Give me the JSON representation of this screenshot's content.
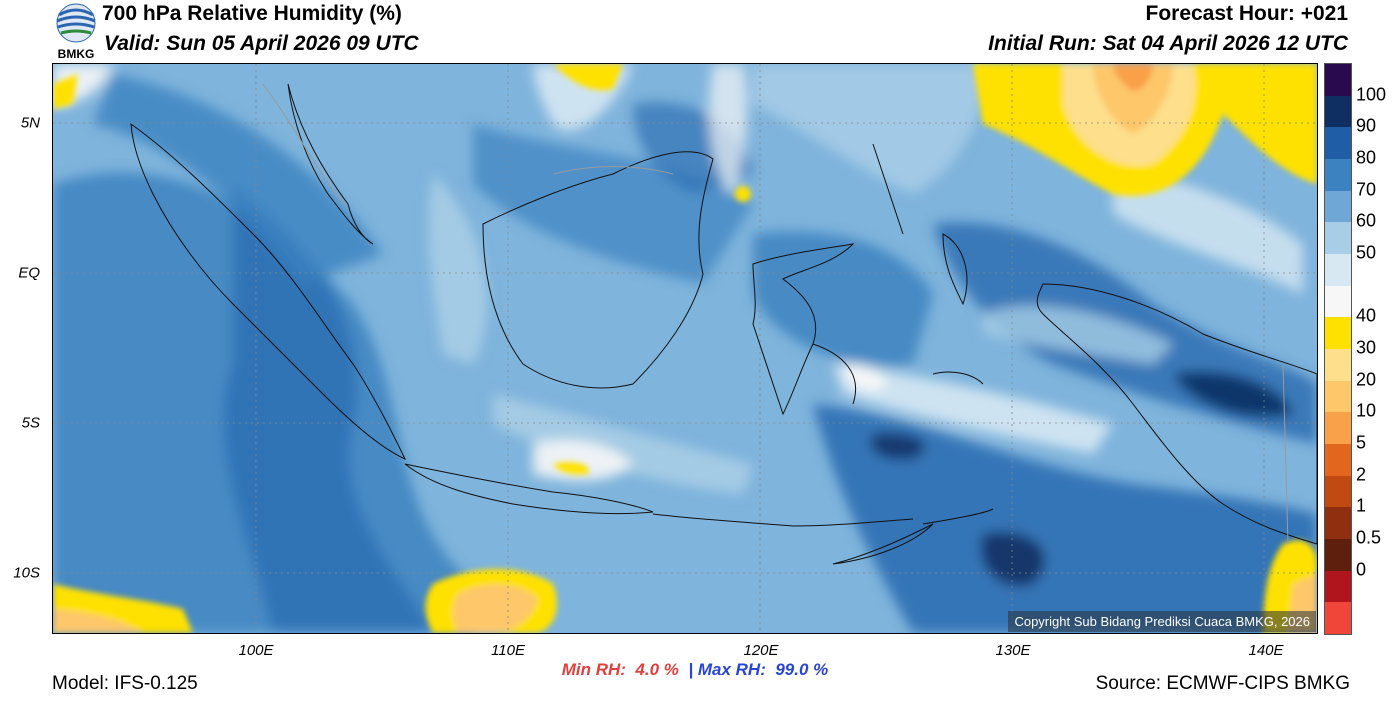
{
  "header": {
    "title": "700 hPa Relative Humidity (%)",
    "valid": "Valid: Sun 05 April 2026 09 UTC",
    "forecast_hour": "Forecast Hour: +021",
    "initial_run": "Initial Run: Sat 04 April 2026 12 UTC",
    "logo_text": "BMKG"
  },
  "map": {
    "lat_labels": [
      "5N",
      "EQ",
      "5S",
      "10S"
    ],
    "lon_labels": [
      "100E",
      "110E",
      "120E",
      "130E",
      "140E"
    ],
    "copyright": "Copyright Sub Bidang Prediksi Cuaca BMKG, 2026"
  },
  "colorbar": {
    "labels": [
      "100",
      "90",
      "80",
      "70",
      "60",
      "50",
      "40",
      "30",
      "20",
      "10",
      "5",
      "2",
      "1",
      "0.5",
      "0"
    ],
    "colors": [
      "#2a0a4e",
      "#0f2f63",
      "#1f5ea6",
      "#3c82c0",
      "#6fa8d6",
      "#a8cde6",
      "#d7e8f3",
      "#f7f7f7",
      "#ffe100",
      "#fddf8c",
      "#fdc76a",
      "#f9a04a",
      "#e3661f",
      "#c04a12",
      "#8f2f10",
      "#5e1f0c",
      "#b0141c",
      "#f0463a"
    ]
  },
  "footer": {
    "min_label": "Min RH:",
    "min_value": "4.0 %",
    "max_label": "Max RH:",
    "max_value": "99.0 %",
    "separator": "|",
    "model": "Model: IFS-0.125",
    "source": "Source: ECMWF-CIPS BMKG"
  }
}
